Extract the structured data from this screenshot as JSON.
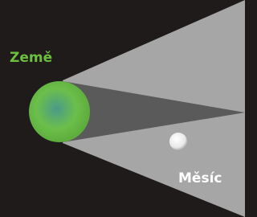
{
  "labels": {
    "earth": "Země",
    "moon": "Měsíc"
  }
}
